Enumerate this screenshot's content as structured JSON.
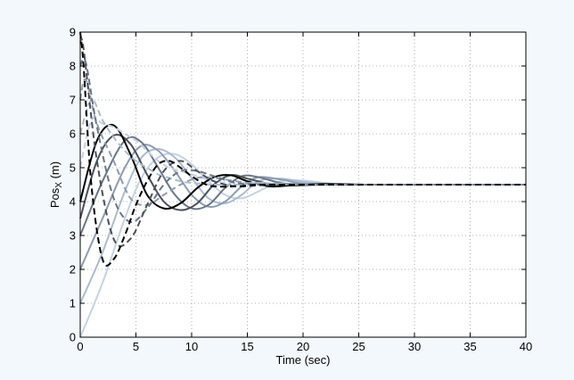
{
  "chart_data": {
    "type": "line",
    "title": "",
    "xlabel": "Time (sec)",
    "ylabel_main": "Pos",
    "ylabel_sub": "X",
    "ylabel_unit": " (m)",
    "xlim": [
      0,
      40
    ],
    "ylim": [
      0,
      9
    ],
    "xticks": [
      "0",
      "5",
      "10",
      "15",
      "20",
      "25",
      "30",
      "35",
      "40"
    ],
    "yticks": [
      "0",
      "1",
      "2",
      "3",
      "4",
      "5",
      "6",
      "7",
      "8",
      "9"
    ],
    "grid": true,
    "legend": "none",
    "series": [
      {
        "dashed": false,
        "color": "#c4d2e4",
        "x": [
          0,
          2,
          4,
          5.5,
          7,
          8.5,
          10,
          11.5,
          13,
          14.5,
          16,
          18,
          20,
          23,
          26,
          30,
          40
        ],
        "y": [
          0,
          1.6,
          3.5,
          4.7,
          5.3,
          5.4,
          5.1,
          4.6,
          4.2,
          4.1,
          4.3,
          4.6,
          4.62,
          4.52,
          4.5,
          4.5,
          4.5
        ]
      },
      {
        "dashed": false,
        "color": "#aabccf",
        "x": [
          0,
          2,
          4,
          5.5,
          7,
          8.5,
          10,
          11.5,
          13,
          14.5,
          16,
          18,
          20,
          23,
          26,
          30,
          40
        ],
        "y": [
          1.0,
          2.5,
          4.3,
          5.3,
          5.55,
          5.3,
          4.7,
          4.1,
          3.95,
          4.2,
          4.6,
          4.68,
          4.58,
          4.5,
          4.5,
          4.5,
          4.5
        ]
      },
      {
        "dashed": false,
        "color": "#8e9cb0",
        "x": [
          0,
          2,
          4,
          5.5,
          7,
          8.5,
          10,
          11.5,
          13,
          14.5,
          16,
          18,
          20,
          23,
          26,
          30,
          40
        ],
        "y": [
          2.0,
          3.5,
          5.0,
          5.65,
          5.5,
          4.9,
          4.2,
          3.85,
          4.0,
          4.45,
          4.72,
          4.65,
          4.53,
          4.5,
          4.5,
          4.5,
          4.5
        ]
      },
      {
        "dashed": false,
        "color": "#6a7684",
        "x": [
          0,
          2,
          4,
          5.5,
          7,
          8.5,
          10,
          11.5,
          13,
          14.5,
          16,
          18,
          20,
          23,
          26,
          30,
          40
        ],
        "y": [
          3.0,
          4.6,
          5.8,
          5.75,
          5.0,
          4.2,
          3.8,
          3.9,
          4.4,
          4.75,
          4.72,
          4.55,
          4.5,
          4.5,
          4.5,
          4.5,
          4.5
        ]
      },
      {
        "dashed": false,
        "color": "#4a5058",
        "x": [
          0,
          1.5,
          3,
          4.5,
          6,
          7.5,
          9,
          10.5,
          12,
          13.5,
          15,
          17,
          19,
          22,
          26,
          30,
          40
        ],
        "y": [
          3.5,
          5.2,
          5.95,
          5.7,
          4.8,
          4.0,
          3.75,
          3.95,
          4.5,
          4.78,
          4.68,
          4.52,
          4.48,
          4.5,
          4.5,
          4.5,
          4.5
        ]
      },
      {
        "dashed": false,
        "color": "#000000",
        "x": [
          0,
          1.5,
          3,
          4.5,
          6,
          7.5,
          9,
          10.5,
          12,
          13.5,
          15,
          17,
          19,
          22,
          26,
          30,
          40
        ],
        "y": [
          4.0,
          5.8,
          6.25,
          5.4,
          4.2,
          3.8,
          3.95,
          4.4,
          4.72,
          4.78,
          4.6,
          4.45,
          4.48,
          4.52,
          4.5,
          4.5,
          4.5
        ]
      },
      {
        "dashed": true,
        "color": "#c4d2e4",
        "x": [
          0,
          1,
          2,
          3,
          4,
          5,
          6,
          7,
          8,
          9,
          10,
          12,
          14,
          16,
          18,
          20,
          25,
          30,
          40
        ],
        "y": [
          5.0,
          6.4,
          6.3,
          6.2,
          6.0,
          5.8,
          5.5,
          5.2,
          5.0,
          4.9,
          4.8,
          4.6,
          4.55,
          4.55,
          4.52,
          4.5,
          4.5,
          4.5,
          4.5
        ]
      },
      {
        "dashed": true,
        "color": "#aabccf",
        "x": [
          0,
          1,
          2,
          3,
          4,
          5,
          6,
          7,
          8,
          9,
          10,
          12,
          14,
          16,
          18,
          20,
          25,
          30,
          40
        ],
        "y": [
          6.0,
          7.0,
          6.4,
          5.9,
          5.5,
          5.2,
          5.0,
          4.8,
          4.7,
          4.6,
          4.55,
          4.5,
          4.5,
          4.55,
          4.52,
          4.5,
          4.5,
          4.5,
          4.5
        ]
      },
      {
        "dashed": true,
        "color": "#8e9cb0",
        "x": [
          0,
          0.5,
          1.5,
          3,
          4.5,
          6,
          7.5,
          9,
          10.5,
          12,
          14,
          16,
          18,
          20,
          25,
          30,
          40
        ],
        "y": [
          7.0,
          7.6,
          6.3,
          5.2,
          4.1,
          3.9,
          4.2,
          4.5,
          4.7,
          4.7,
          4.6,
          4.52,
          4.5,
          4.5,
          4.5,
          4.5,
          4.5
        ]
      },
      {
        "dashed": true,
        "color": "#6a7684",
        "x": [
          0,
          0.5,
          1.5,
          3,
          4.5,
          6,
          7.5,
          9,
          10.5,
          12,
          14,
          16,
          18,
          20,
          25,
          30,
          40
        ],
        "y": [
          8.0,
          8.1,
          6.2,
          4.1,
          3.4,
          3.8,
          4.5,
          4.9,
          4.9,
          4.75,
          4.55,
          4.5,
          4.5,
          4.5,
          4.5,
          4.5,
          4.5
        ]
      },
      {
        "dashed": true,
        "color": "#4a5058",
        "x": [
          0,
          0.3,
          1.5,
          3,
          4.5,
          6,
          7.5,
          9,
          10.5,
          12,
          14,
          16,
          18,
          20,
          25,
          30,
          40
        ],
        "y": [
          8.7,
          8.5,
          5.2,
          2.9,
          2.9,
          3.9,
          4.9,
          5.2,
          4.9,
          4.6,
          4.45,
          4.48,
          4.5,
          4.5,
          4.5,
          4.5,
          4.5
        ]
      },
      {
        "dashed": true,
        "color": "#000000",
        "x": [
          0,
          0.3,
          1,
          2,
          3,
          4,
          5,
          6,
          7,
          8,
          9,
          10,
          11,
          12,
          14,
          16,
          18,
          20,
          25,
          30,
          40
        ],
        "y": [
          9.0,
          8.0,
          4.5,
          2.3,
          2.3,
          3.0,
          3.9,
          4.6,
          5.1,
          5.2,
          5.0,
          4.75,
          4.55,
          4.45,
          4.45,
          4.5,
          4.5,
          4.5,
          4.5,
          4.5,
          4.5
        ]
      }
    ]
  }
}
